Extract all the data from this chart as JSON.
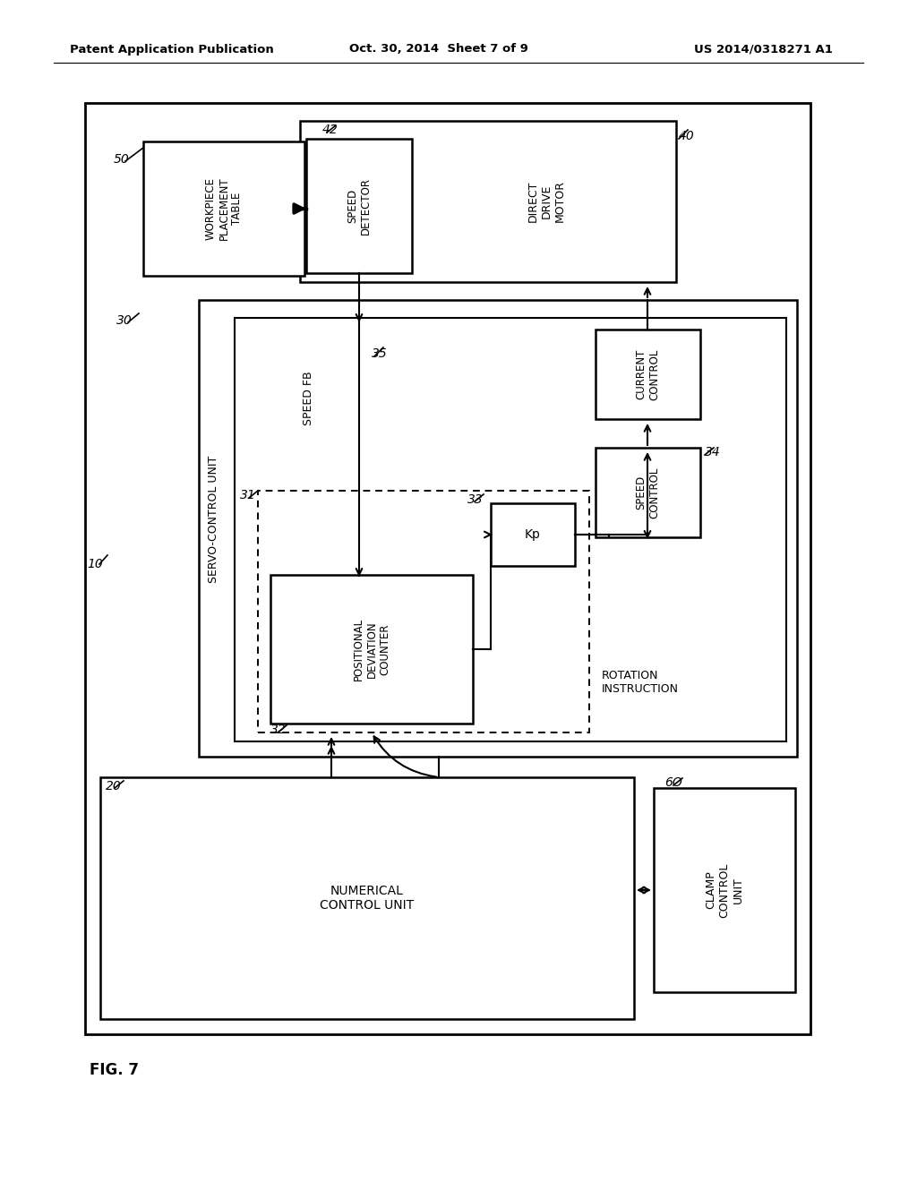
{
  "bg_color": "#ffffff",
  "line_color": "#000000",
  "header_left": "Patent Application Publication",
  "header_mid": "Oct. 30, 2014  Sheet 7 of 9",
  "header_right": "US 2014/0318271 A1",
  "fig_label": "FIG. 7",
  "label_10": "10",
  "label_20": "20",
  "label_30": "30",
  "label_40": "40",
  "label_42": "42",
  "label_50": "50",
  "label_60": "6O",
  "label_31": "31",
  "label_32": "32",
  "label_33": "33",
  "label_34": "34",
  "label_35": "35",
  "box_workpiece": "WORKPIECE\nPLACEMENT\nTABLE",
  "box_dd_motor": "DIRECT\nDRIVE\nMOTOR",
  "box_speed_det": "SPEED\nDETECTOR",
  "box_current": "CURRENT\nCONTROL",
  "box_speed_ctrl": "SPEED\nCONTROL",
  "box_kp": "Kp",
  "box_pos_dev": "POSITIONAL\nDEVIATION\nCOUNTER",
  "box_num_ctrl": "NUMERICAL\nCONTROL UNIT",
  "box_clamp": "CLAMP\nCONTROL\nUNIT",
  "label_servo": "SERVO-CONTROL UNIT",
  "label_speed_fb": "SPEED FB",
  "label_rotation": "ROTATION\nINSTRUCTION"
}
